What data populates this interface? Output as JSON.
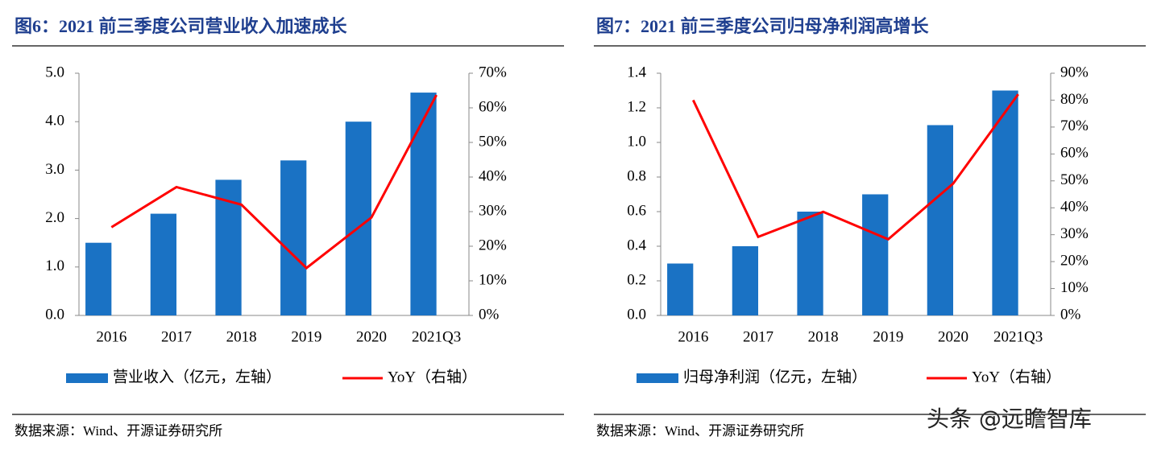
{
  "chart_data": [
    {
      "type": "bar",
      "title": "图6：2021 前三季度公司营业收入加速成长",
      "source": "数据来源：Wind、开源证券研究所",
      "categories": [
        "2016",
        "2017",
        "2018",
        "2019",
        "2020",
        "2021Q3"
      ],
      "series": [
        {
          "name": "营业收入（亿元，左轴）",
          "type": "bar",
          "color": "#1a72c4",
          "values": [
            1.5,
            2.1,
            2.8,
            3.2,
            4.0,
            4.6
          ]
        },
        {
          "name": "YoY（右轴）",
          "type": "line",
          "axis": "y2",
          "color": "#ff0000",
          "values": [
            25.5,
            37.1,
            32,
            13.7,
            28.3,
            63.7
          ]
        }
      ],
      "ylim": [
        0,
        5
      ],
      "yticks": [
        {
          "value": 0,
          "label": "0.0"
        },
        {
          "value": 1,
          "label": "1.0"
        },
        {
          "value": 2,
          "label": "2.0"
        },
        {
          "value": 3,
          "label": "3.0"
        },
        {
          "value": 4,
          "label": "4.0"
        },
        {
          "value": 5,
          "label": "5.0"
        }
      ],
      "y2lim": [
        0,
        70
      ],
      "y2ticks": [
        {
          "value": 0,
          "label": "0%"
        },
        {
          "value": 10,
          "label": "10%"
        },
        {
          "value": 20,
          "label": "20%"
        },
        {
          "value": 30,
          "label": "30%"
        },
        {
          "value": 40,
          "label": "40%"
        },
        {
          "value": 50,
          "label": "50%"
        },
        {
          "value": 60,
          "label": "60%"
        },
        {
          "value": 70,
          "label": "70%"
        }
      ],
      "grid": false,
      "legend": "bottom"
    },
    {
      "type": "bar",
      "title": "图7：2021 前三季度公司归母净利润高增长",
      "source": "数据来源：Wind、开源证券研究所",
      "categories": [
        "2016",
        "2017",
        "2018",
        "2019",
        "2020",
        "2021Q3"
      ],
      "series": [
        {
          "name": "归母净利润（亿元，左轴）",
          "type": "bar",
          "color": "#1a72c4",
          "values": [
            0.3,
            0.4,
            0.6,
            0.7,
            1.1,
            1.3
          ]
        },
        {
          "name": "YoY（右轴）",
          "type": "line",
          "axis": "y2",
          "color": "#ff0000",
          "values": [
            80,
            29.2,
            38.5,
            28.3,
            49,
            82.2
          ]
        }
      ],
      "ylim": [
        0,
        1.4
      ],
      "yticks": [
        {
          "value": 0,
          "label": "0.0"
        },
        {
          "value": 0.2,
          "label": "0.2"
        },
        {
          "value": 0.4,
          "label": "0.4"
        },
        {
          "value": 0.6,
          "label": "0.6"
        },
        {
          "value": 0.8,
          "label": "0.8"
        },
        {
          "value": 1,
          "label": "1.0"
        },
        {
          "value": 1.2,
          "label": "1.2"
        },
        {
          "value": 1.4,
          "label": "1.4"
        }
      ],
      "y2lim": [
        0,
        90
      ],
      "y2ticks": [
        {
          "value": 0,
          "label": "0%"
        },
        {
          "value": 10,
          "label": "10%"
        },
        {
          "value": 20,
          "label": "20%"
        },
        {
          "value": 30,
          "label": "30%"
        },
        {
          "value": 40,
          "label": "40%"
        },
        {
          "value": 50,
          "label": "50%"
        },
        {
          "value": 60,
          "label": "60%"
        },
        {
          "value": 70,
          "label": "70%"
        },
        {
          "value": 80,
          "label": "80%"
        },
        {
          "value": 90,
          "label": "90%"
        }
      ],
      "grid": false,
      "legend": "bottom"
    }
  ],
  "watermark": "头条 @远瞻智库"
}
